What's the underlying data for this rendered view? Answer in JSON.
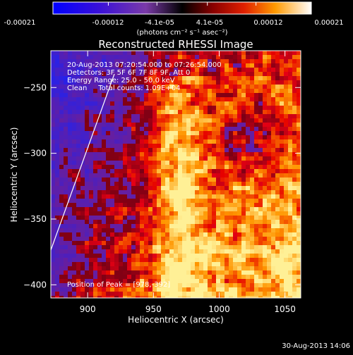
{
  "colorbar": {
    "ticks": [
      "-0.00021",
      "-0.00012",
      "-4.1e-05",
      "4.1e-05",
      "0.00012",
      "0.00021"
    ],
    "unit_label": "(photons cm⁻² s⁻¹ asec⁻²)",
    "range": [
      -0.00021,
      0.00021
    ]
  },
  "image": {
    "title": "Reconstructed RHESSI Image",
    "info_lines": [
      "20-Aug-2013 07:20:54.000 to 07:26:54.000",
      "Detectors: 3F 5F 6F 7F 8F 9F, Att 0",
      "Energy Range: 25.0 - 50.0 keV",
      "Clean     Total counts: 1.09E+04"
    ],
    "peak_label": "Position of Peak = [978,-392]",
    "peak_position": [
      978,
      -392
    ],
    "limb_label": ""
  },
  "axes": {
    "xlabel": "Heliocentric X (arcsec)",
    "ylabel": "Heliocentric Y (arcsec)",
    "xlim": [
      872,
      1062
    ],
    "ylim": [
      -410,
      -222
    ],
    "xticks": [
      900,
      950,
      1000,
      1050
    ],
    "yticks": [
      -250,
      -300,
      -350,
      -400
    ],
    "xtick_labels": [
      "900",
      "950",
      "1000",
      "1050"
    ],
    "ytick_labels": [
      "−250",
      "−300",
      "−350",
      "−400"
    ]
  },
  "footer": {
    "timestamp": "30-Aug-2013 14:06"
  },
  "colors": {
    "background": "#000000",
    "foreground": "#ffffff"
  }
}
